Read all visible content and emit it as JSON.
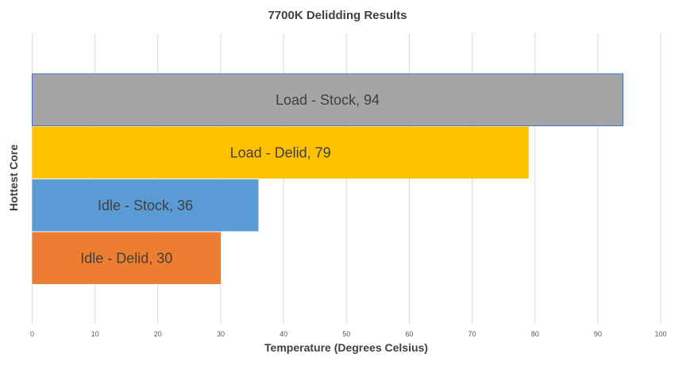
{
  "chart_data": {
    "type": "bar",
    "orientation": "horizontal",
    "title": "7700K Delidding Results",
    "xlabel": "Temperature (Degrees Celsius)",
    "ylabel": "Hottest Core",
    "xlim": [
      0,
      100
    ],
    "x_ticks": [
      0,
      10,
      20,
      30,
      40,
      50,
      60,
      70,
      80,
      90,
      100
    ],
    "grid": true,
    "legend": "none",
    "series": [
      {
        "label": "Load - Stock",
        "value": 94,
        "data_label": "Load - Stock, 94",
        "color": "#A5A5A5",
        "border": "#4472C4"
      },
      {
        "label": "Load - Delid",
        "value": 79,
        "data_label": "Load - Delid, 79",
        "color": "#FFC000"
      },
      {
        "label": "Idle - Stock",
        "value": 36,
        "data_label": "Idle - Stock, 36",
        "color": "#5B9BD5"
      },
      {
        "label": "Idle - Delid",
        "value": 30,
        "data_label": "Idle - Delid, 30",
        "color": "#ED7D31"
      }
    ]
  }
}
